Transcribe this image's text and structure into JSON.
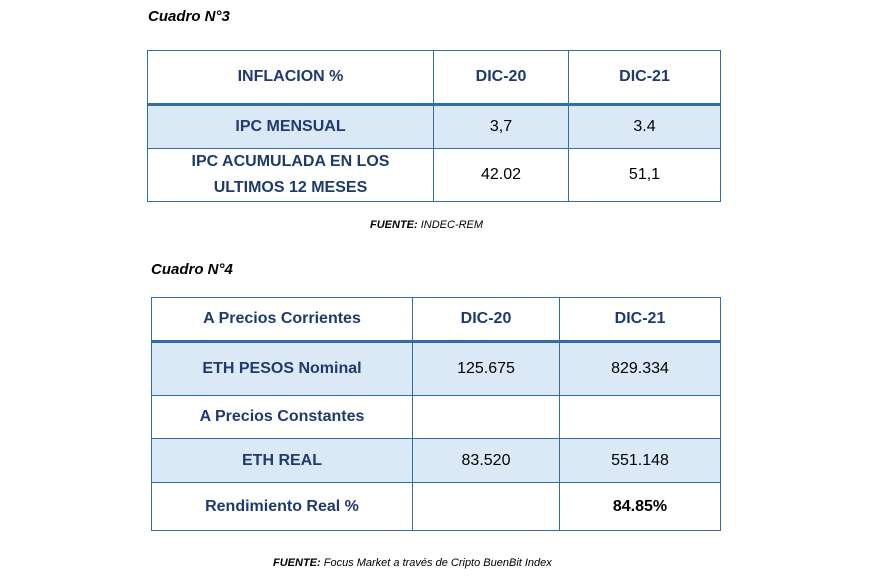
{
  "table3": {
    "caption": "Cuadro N°3",
    "header": [
      "INFLACION %",
      "DIC-20",
      "DIC-21"
    ],
    "rows": [
      [
        "IPC MENSUAL",
        "3,7",
        "3.4"
      ],
      [
        "IPC ACUMULADA EN LOS ULTIMOS 12 MESES",
        "42.02",
        "51,1"
      ]
    ],
    "source_label": "FUENTE:",
    "source_text": " INDEC-REM"
  },
  "table4": {
    "caption": "Cuadro N°4",
    "header": [
      "A Precios Corrientes",
      "DIC-20",
      "DIC-21"
    ],
    "rows": [
      [
        "ETH PESOS Nominal",
        "125.675",
        "829.334"
      ],
      [
        "A Precios Constantes",
        "",
        ""
      ],
      [
        "ETH REAL",
        "83.520",
        "551.148"
      ],
      [
        "Rendimiento Real %",
        "",
        "84.85%"
      ]
    ],
    "source_label": "FUENTE:",
    "source_text": " Focus Market a través de Cripto BuenBit Index"
  }
}
